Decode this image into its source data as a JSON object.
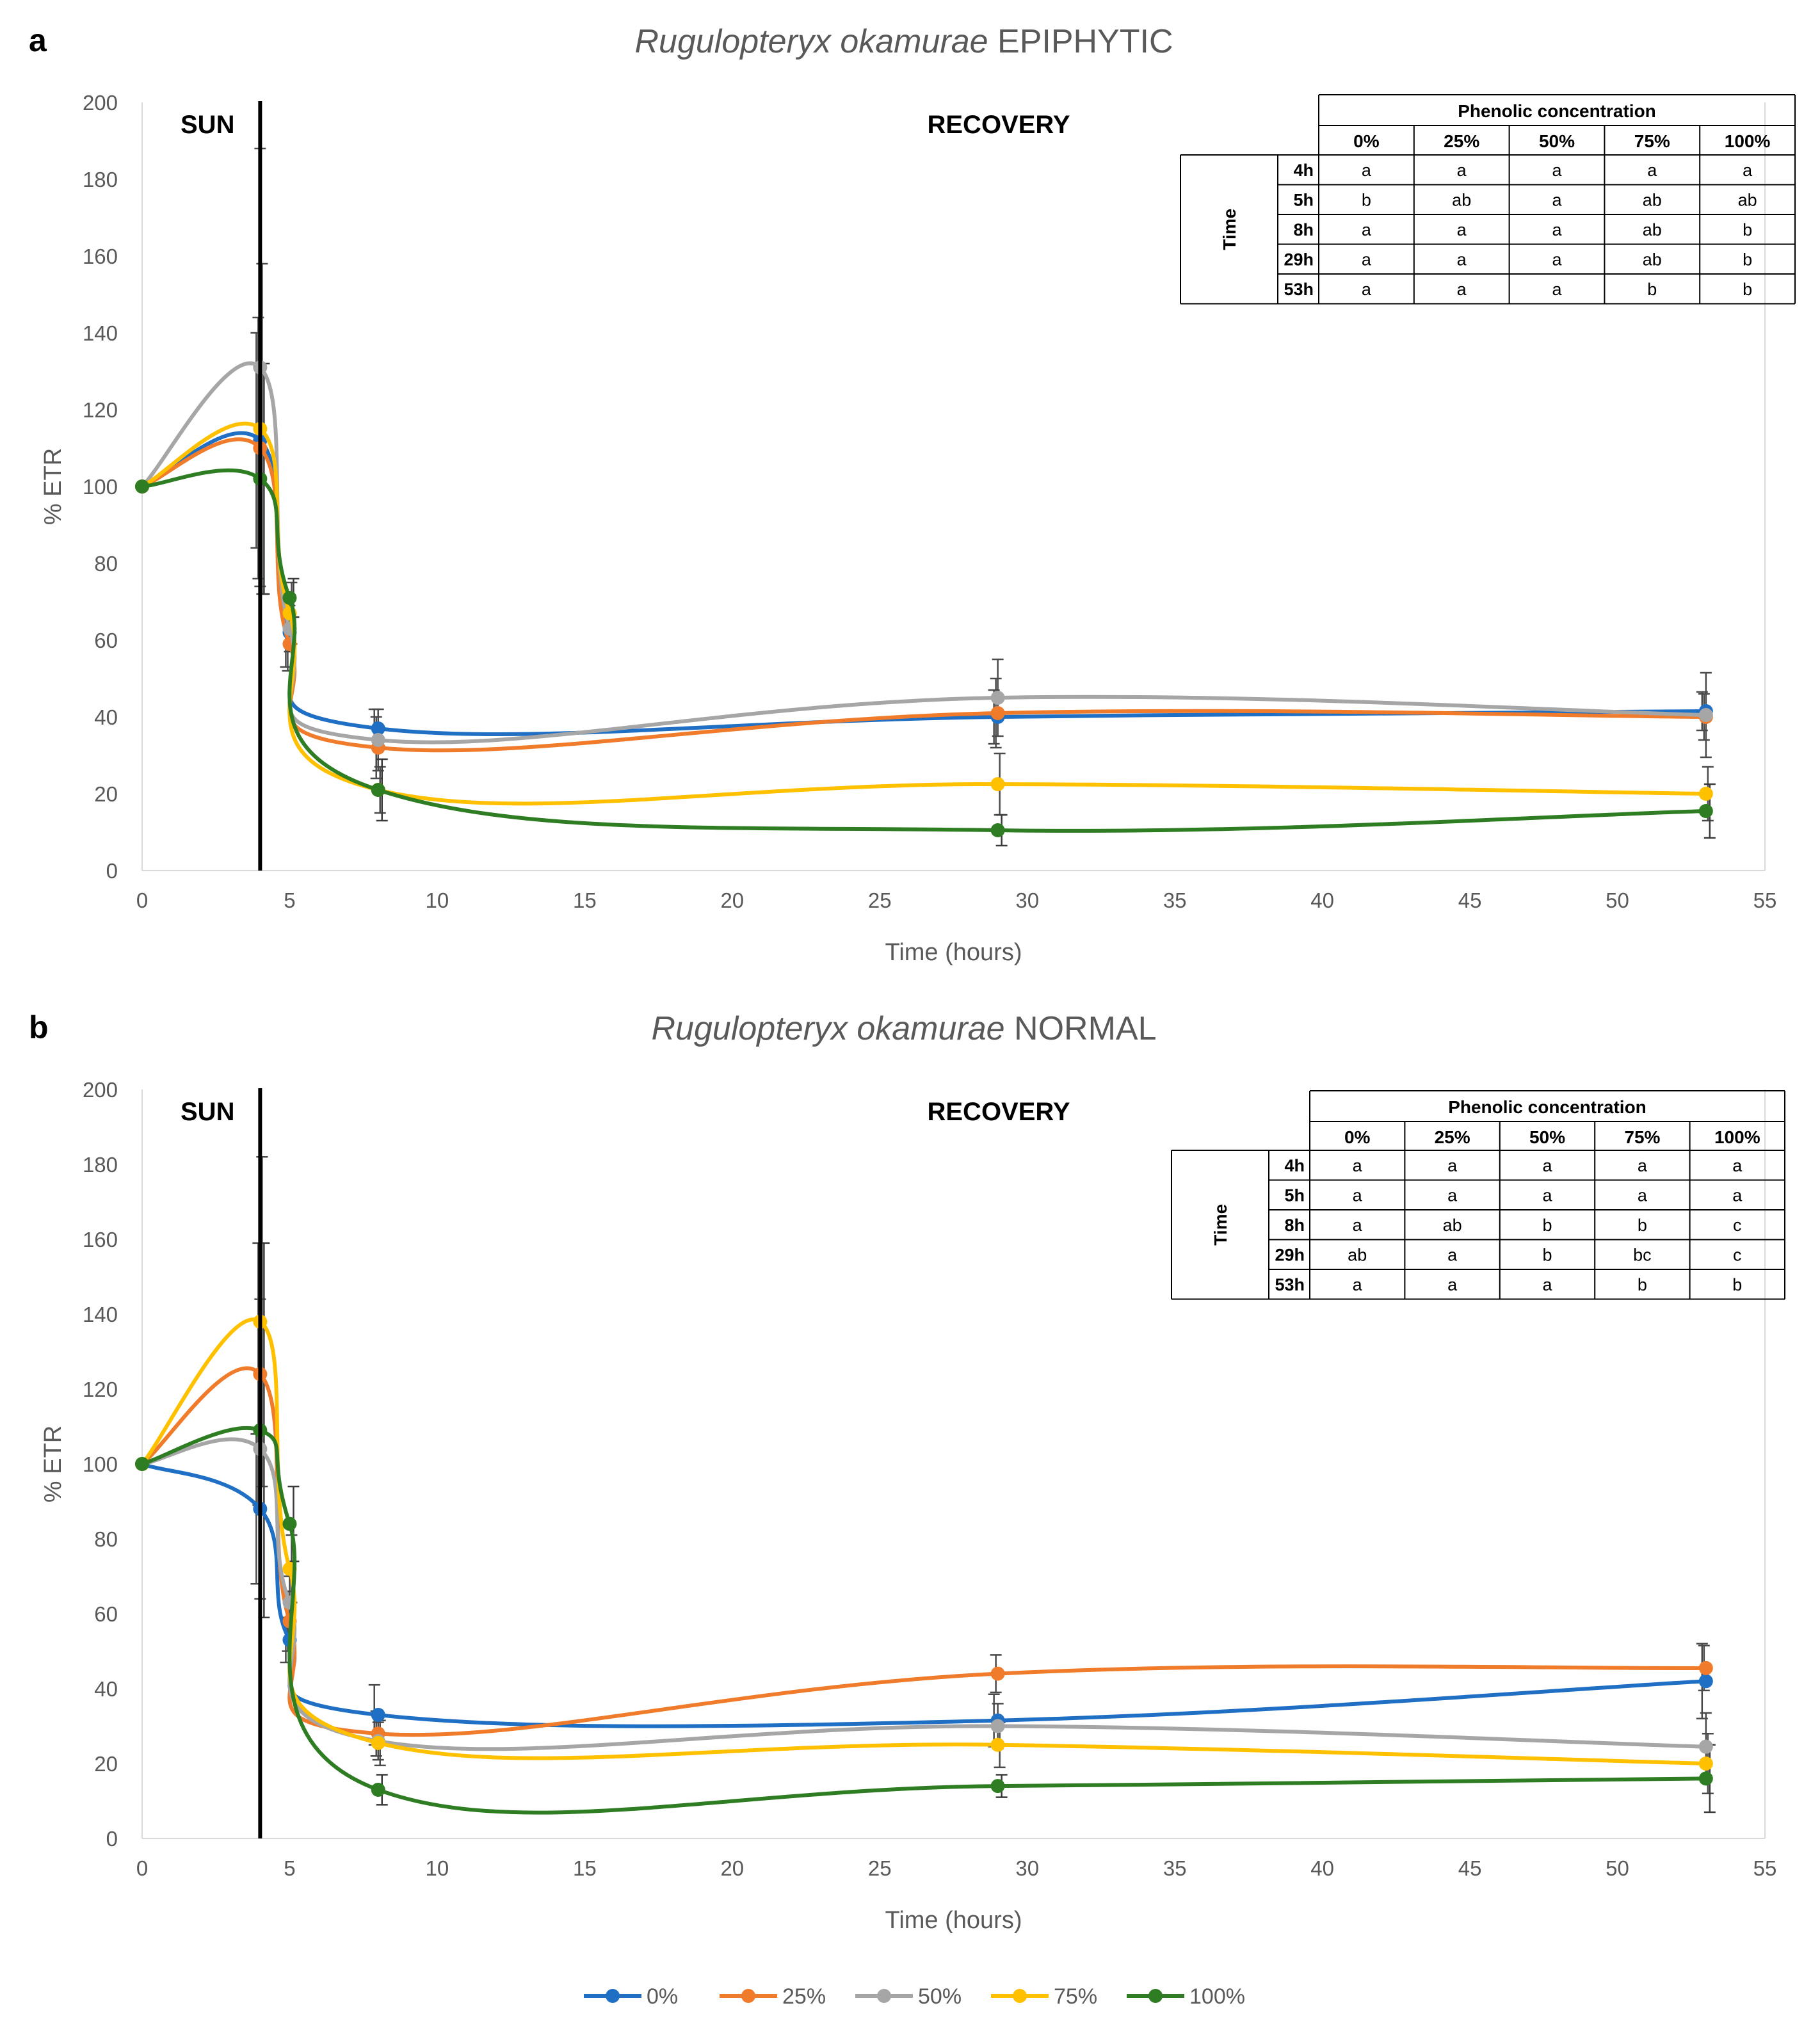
{
  "colors": {
    "0%": "#1f6fc5",
    "25%": "#f07b2a",
    "50%": "#a6a6a6",
    "75%": "#ffc000",
    "100%": "#2e7d23"
  },
  "legend": [
    "0%",
    "25%",
    "50%",
    "75%",
    "100%"
  ],
  "chart_data": [
    {
      "panel": "a",
      "type": "line",
      "title_italic": "Rugulopteryx okamurae",
      "title_rest": " EPIPHYTIC",
      "xlabel": "Time (hours)",
      "ylabel": "% ETR",
      "xlim": [
        0,
        55
      ],
      "ylim": [
        0,
        200
      ],
      "xticks": [
        0,
        5,
        10,
        15,
        20,
        25,
        30,
        35,
        40,
        45,
        50,
        55
      ],
      "yticks": [
        0,
        20,
        40,
        60,
        80,
        100,
        120,
        140,
        160,
        180,
        200
      ],
      "phase_labels": {
        "sun": "SUN",
        "recovery": "RECOVERY"
      },
      "sun_end_x": 4,
      "x": [
        0,
        4,
        5,
        8,
        29,
        53
      ],
      "series": [
        {
          "name": "0%",
          "values": [
            100,
            112,
            62,
            37,
            40,
            41.5
          ]
        },
        {
          "name": "25%",
          "values": [
            100,
            110,
            59,
            32,
            41,
            40
          ]
        },
        {
          "name": "50%",
          "values": [
            100,
            131,
            63,
            34,
            45,
            40.5
          ]
        },
        {
          "name": "75%",
          "values": [
            100,
            115,
            67,
            21,
            22.5,
            20
          ]
        },
        {
          "name": "100%",
          "values": [
            100,
            102,
            71,
            21,
            10.5,
            15.5
          ]
        }
      ],
      "error_bars": [
        [
          0,
          28,
          9,
          5,
          7,
          5
        ],
        [
          0,
          34,
          7,
          8,
          9,
          6
        ],
        [
          0,
          57,
          6,
          8,
          10,
          11
        ],
        [
          0,
          43,
          8,
          6,
          8,
          7
        ],
        [
          0,
          30,
          5,
          8,
          4,
          7
        ]
      ],
      "table": {
        "header": "Phenolic concentration",
        "columns": [
          "0%",
          "25%",
          "50%",
          "75%",
          "100%"
        ],
        "row_group": "Time",
        "rows": [
          {
            "label": "4h",
            "cells": [
              "a",
              "a",
              "a",
              "a",
              "a"
            ]
          },
          {
            "label": "5h",
            "cells": [
              "b",
              "ab",
              "a",
              "ab",
              "ab"
            ]
          },
          {
            "label": "8h",
            "cells": [
              "a",
              "a",
              "a",
              "ab",
              "b"
            ]
          },
          {
            "label": "29h",
            "cells": [
              "a",
              "a",
              "a",
              "ab",
              "b"
            ]
          },
          {
            "label": "53h",
            "cells": [
              "a",
              "a",
              "a",
              "b",
              "b"
            ]
          }
        ]
      }
    },
    {
      "panel": "b",
      "type": "line",
      "title_italic": "Rugulopteryx okamurae",
      "title_rest": " NORMAL",
      "xlabel": "Time (hours)",
      "ylabel": "% ETR",
      "xlim": [
        0,
        55
      ],
      "ylim": [
        0,
        200
      ],
      "xticks": [
        0,
        5,
        10,
        15,
        20,
        25,
        30,
        35,
        40,
        45,
        50,
        55
      ],
      "yticks": [
        0,
        20,
        40,
        60,
        80,
        100,
        120,
        140,
        160,
        180,
        200
      ],
      "phase_labels": {
        "sun": "SUN",
        "recovery": "RECOVERY"
      },
      "sun_end_x": 4,
      "x": [
        0,
        4,
        5,
        8,
        29,
        53
      ],
      "series": [
        {
          "name": "0%",
          "values": [
            100,
            88,
            53,
            33,
            31.5,
            42
          ]
        },
        {
          "name": "25%",
          "values": [
            100,
            124,
            58,
            28,
            44,
            45.5
          ]
        },
        {
          "name": "50%",
          "values": [
            100,
            104,
            63,
            26,
            30,
            24.5
          ]
        },
        {
          "name": "75%",
          "values": [
            100,
            138,
            72,
            25.5,
            25,
            20
          ]
        },
        {
          "name": "100%",
          "values": [
            100,
            109,
            84,
            13,
            14,
            16
          ]
        }
      ],
      "error_bars": [
        [
          0,
          20,
          6,
          8,
          7,
          10
        ],
        [
          0,
          35,
          8,
          6,
          5,
          6
        ],
        [
          0,
          40,
          7,
          5,
          6,
          9
        ],
        [
          0,
          44,
          9,
          6,
          6,
          8
        ],
        [
          0,
          50,
          10,
          4,
          3,
          9
        ]
      ],
      "table": {
        "header": "Phenolic concentration",
        "columns": [
          "0%",
          "25%",
          "50%",
          "75%",
          "100%"
        ],
        "row_group": "Time",
        "rows": [
          {
            "label": "4h",
            "cells": [
              "a",
              "a",
              "a",
              "a",
              "a"
            ]
          },
          {
            "label": "5h",
            "cells": [
              "a",
              "a",
              "a",
              "a",
              "a"
            ]
          },
          {
            "label": "8h",
            "cells": [
              "a",
              "ab",
              "b",
              "b",
              "c"
            ]
          },
          {
            "label": "29h",
            "cells": [
              "ab",
              "a",
              "b",
              "bc",
              "c"
            ]
          },
          {
            "label": "53h",
            "cells": [
              "a",
              "a",
              "a",
              "b",
              "b"
            ]
          }
        ]
      }
    }
  ]
}
